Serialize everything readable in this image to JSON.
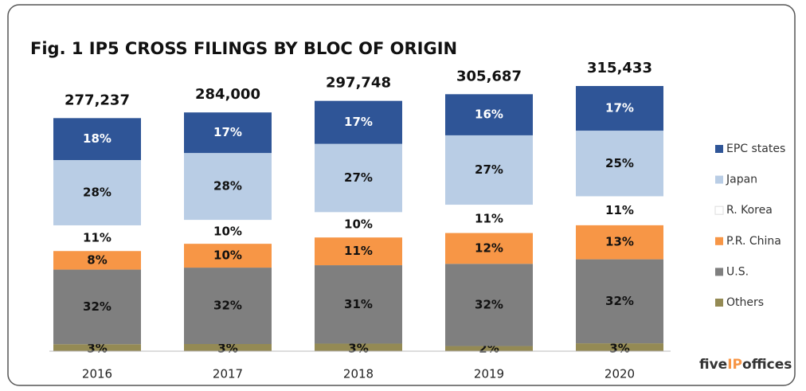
{
  "chart_data": {
    "type": "stacked_bar",
    "title": "Fig. 1 IP5 CROSS FILINGS BY BLOC OF ORIGIN",
    "categories": [
      "2016",
      "2017",
      "2018",
      "2019",
      "2020"
    ],
    "totals": {
      "values": [
        277237,
        284000,
        297748,
        305687,
        315433
      ],
      "value_labels": [
        "277,237",
        "284,000",
        "297,748",
        "305,687",
        "315,433"
      ]
    },
    "series": [
      {
        "name": "EPC states",
        "color": "#2f5597",
        "values": [
          18,
          17,
          17,
          16,
          17
        ],
        "value_labels": [
          "18%",
          "17%",
          "17%",
          "16%",
          "17%"
        ]
      },
      {
        "name": "Japan",
        "color": "#b9cde5",
        "values": [
          28,
          28,
          27,
          27,
          25
        ],
        "value_labels": [
          "28%",
          "28%",
          "27%",
          "27%",
          "25%"
        ]
      },
      {
        "name": "R. Korea",
        "color": "#ffffff",
        "values": [
          11,
          10,
          10,
          11,
          11
        ],
        "value_labels": [
          "11%",
          "10%",
          "10%",
          "11%",
          "11%"
        ]
      },
      {
        "name": "P.R. China",
        "color": "#f79646",
        "values": [
          8,
          10,
          11,
          12,
          13
        ],
        "value_labels": [
          "8%",
          "10%",
          "11%",
          "12%",
          "13%"
        ]
      },
      {
        "name": "U.S.",
        "color": "#7f7f7f",
        "values": [
          32,
          32,
          31,
          32,
          32
        ],
        "value_labels": [
          "32%",
          "32%",
          "31%",
          "32%",
          "32%"
        ]
      },
      {
        "name": "Others",
        "color": "#948a54",
        "values": [
          3,
          3,
          3,
          2,
          3
        ],
        "value_labels": [
          "3%",
          "3%",
          "3%",
          "2%",
          "3%"
        ]
      }
    ],
    "legend": "right",
    "logo": [
      "five",
      "IP",
      "offices"
    ]
  }
}
